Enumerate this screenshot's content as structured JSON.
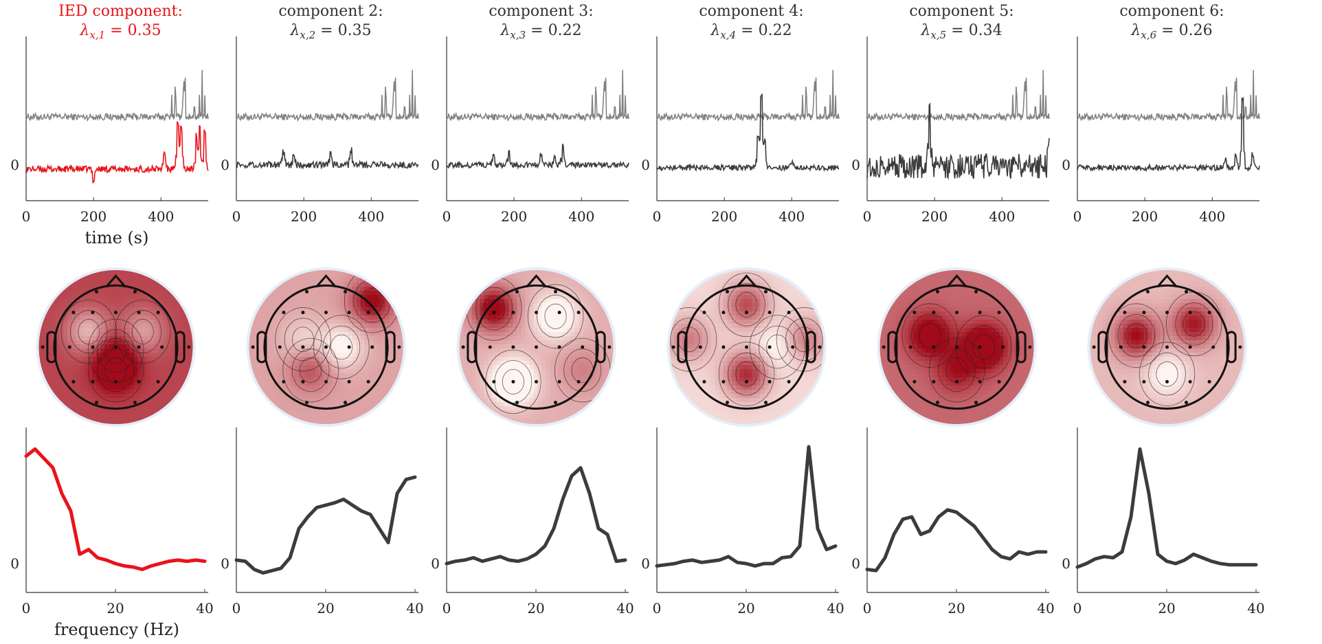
{
  "figure": {
    "time_xlabel": "time (s)",
    "freq_xlabel": "frequency (Hz)",
    "zero_label": "0",
    "time_ticks": [
      0,
      200,
      400
    ],
    "time_xlim": [
      0,
      540
    ],
    "freq_ticks": [
      0,
      20,
      40
    ],
    "freq_xlim": [
      0,
      40
    ]
  },
  "colors": {
    "ied": "#e8141b",
    "other": "#3c3c3c",
    "gray": "#808080",
    "head": "#111111"
  },
  "chart_data": [
    {
      "type": "line",
      "highlight": true,
      "title_line1": "IED component:",
      "title_line2": "λx,1 = 0.35",
      "lambda_sub": "x,1",
      "lambda_value": "0.35",
      "time_spikes": [
        [
          450,
          1.7
        ],
        [
          460,
          1.5
        ],
        [
          505,
          1.3
        ],
        [
          515,
          1.6
        ],
        [
          530,
          1.4
        ],
        [
          410,
          0.6
        ],
        [
          200,
          -0.4
        ]
      ],
      "time_noise": 0.12,
      "time_baseline": -0.15,
      "spectrum": {
        "freq": [
          0,
          2,
          4,
          6,
          8,
          10,
          12,
          14,
          16,
          18,
          20,
          22,
          24,
          26,
          28,
          30,
          32,
          34,
          36,
          38,
          40
        ],
        "power": [
          0.92,
          0.98,
          0.9,
          0.82,
          0.6,
          0.45,
          0.08,
          0.12,
          0.05,
          0.03,
          0.0,
          -0.02,
          -0.03,
          -0.05,
          -0.02,
          0.0,
          0.02,
          0.03,
          0.02,
          0.03,
          0.02
        ]
      },
      "topo": {
        "blobs": [
          [
            0.0,
            0.3,
            0.5
          ],
          [
            -0.35,
            -0.2,
            -0.5
          ],
          [
            0.35,
            -0.2,
            -0.4
          ],
          [
            0.0,
            0.05,
            0.3
          ]
        ],
        "base": 0.75
      }
    },
    {
      "type": "line",
      "title_line1": "component 2:",
      "title_line2": "λx,2 = 0.35",
      "lambda_sub": "x,2",
      "lambda_value": "0.35",
      "time_spikes": [
        [
          140,
          0.45
        ],
        [
          280,
          0.4
        ],
        [
          340,
          0.55
        ],
        [
          170,
          0.3
        ]
      ],
      "time_noise": 0.12,
      "time_baseline": 0.0,
      "spectrum": {
        "freq": [
          0,
          2,
          4,
          6,
          8,
          10,
          12,
          14,
          16,
          18,
          20,
          22,
          24,
          26,
          28,
          30,
          32,
          34,
          36,
          38,
          40
        ],
        "power": [
          0.03,
          0.02,
          -0.05,
          -0.08,
          -0.06,
          -0.04,
          0.05,
          0.3,
          0.4,
          0.48,
          0.5,
          0.52,
          0.55,
          0.5,
          0.45,
          0.42,
          0.3,
          0.18,
          0.6,
          0.72,
          0.74
        ]
      },
      "topo": {
        "blobs": [
          [
            0.6,
            -0.6,
            0.7
          ],
          [
            -0.2,
            0.3,
            0.35
          ],
          [
            0.2,
            0.0,
            -0.4
          ],
          [
            -0.3,
            -0.1,
            -0.2
          ]
        ],
        "base": 0.35
      }
    },
    {
      "type": "line",
      "title_line1": "component 3:",
      "title_line2": "λx,3 = 0.22",
      "lambda_sub": "x,3",
      "lambda_value": "0.22",
      "time_spikes": [
        [
          140,
          0.35
        ],
        [
          185,
          0.45
        ],
        [
          280,
          0.35
        ],
        [
          320,
          0.3
        ],
        [
          345,
          0.8
        ]
      ],
      "time_noise": 0.1,
      "time_baseline": 0.0,
      "spectrum": {
        "freq": [
          0,
          2,
          4,
          6,
          8,
          10,
          12,
          14,
          16,
          18,
          20,
          22,
          24,
          26,
          28,
          30,
          32,
          34,
          36,
          38,
          40
        ],
        "power": [
          0.0,
          0.02,
          0.03,
          0.05,
          0.02,
          0.04,
          0.06,
          0.03,
          0.02,
          0.04,
          0.08,
          0.15,
          0.3,
          0.55,
          0.75,
          0.82,
          0.6,
          0.3,
          0.25,
          0.02,
          0.03
        ]
      },
      "topo": {
        "blobs": [
          [
            -0.55,
            -0.5,
            0.8
          ],
          [
            0.25,
            -0.4,
            -0.5
          ],
          [
            -0.3,
            0.45,
            -0.7
          ],
          [
            0.6,
            0.3,
            0.2
          ]
        ],
        "base": 0.3
      }
    },
    {
      "type": "line",
      "title_line1": "component 4:",
      "title_line2": "λx,4 = 0.22",
      "lambda_sub": "x,4",
      "lambda_value": "0.22",
      "time_spikes": [
        [
          310,
          2.6
        ],
        [
          300,
          1.2
        ],
        [
          320,
          1.0
        ],
        [
          400,
          0.2
        ]
      ],
      "time_noise": 0.1,
      "time_baseline": -0.1,
      "spectrum": {
        "freq": [
          0,
          2,
          4,
          6,
          8,
          10,
          12,
          14,
          16,
          18,
          20,
          22,
          24,
          26,
          28,
          30,
          32,
          34,
          36,
          38,
          40
        ],
        "power": [
          -0.02,
          -0.01,
          0.0,
          0.02,
          0.03,
          0.01,
          0.02,
          0.03,
          0.06,
          0.01,
          0.0,
          -0.02,
          0.0,
          0.0,
          0.05,
          0.06,
          0.15,
          1.0,
          0.3,
          0.12,
          0.15
        ]
      },
      "topo": {
        "blobs": [
          [
            0.0,
            -0.55,
            0.6
          ],
          [
            0.0,
            0.35,
            0.75
          ],
          [
            -0.75,
            -0.1,
            0.4
          ],
          [
            0.75,
            -0.1,
            0.4
          ],
          [
            0.4,
            0.0,
            -0.2
          ]
        ],
        "base": 0.12
      }
    },
    {
      "type": "line",
      "title_line1": "component 5:",
      "title_line2": "λx,5 = 0.34",
      "lambda_sub": "x,5",
      "lambda_value": "0.34",
      "time_spikes": [
        [
          185,
          1.9
        ],
        [
          540,
          1.0
        ]
      ],
      "time_noise": 0.45,
      "time_baseline": -0.05,
      "spectrum": {
        "freq": [
          0,
          2,
          4,
          6,
          8,
          10,
          12,
          14,
          16,
          18,
          20,
          22,
          24,
          26,
          28,
          30,
          32,
          34,
          36,
          38,
          40
        ],
        "power": [
          -0.05,
          -0.06,
          0.05,
          0.25,
          0.38,
          0.4,
          0.25,
          0.28,
          0.4,
          0.46,
          0.44,
          0.38,
          0.32,
          0.22,
          0.12,
          0.06,
          0.04,
          0.1,
          0.08,
          0.1,
          0.1
        ]
      },
      "topo": {
        "blobs": [
          [
            0.35,
            0.0,
            0.75
          ],
          [
            -0.35,
            -0.15,
            0.6
          ],
          [
            0.0,
            0.3,
            0.35
          ]
        ],
        "base": 0.6
      }
    },
    {
      "type": "line",
      "title_line1": "component 6:",
      "title_line2": "λx,6 = 0.26",
      "lambda_sub": "x,6",
      "lambda_value": "0.26",
      "time_spikes": [
        [
          490,
          2.5
        ],
        [
          470,
          0.4
        ],
        [
          520,
          0.5
        ],
        [
          440,
          0.3
        ]
      ],
      "time_noise": 0.1,
      "time_baseline": -0.1,
      "spectrum": {
        "freq": [
          0,
          2,
          4,
          6,
          8,
          10,
          12,
          14,
          16,
          18,
          20,
          22,
          24,
          26,
          28,
          30,
          32,
          34,
          36,
          38,
          40
        ],
        "power": [
          -0.03,
          0.0,
          0.04,
          0.06,
          0.05,
          0.1,
          0.4,
          0.98,
          0.6,
          0.08,
          0.02,
          0.0,
          0.03,
          0.08,
          0.05,
          0.02,
          0.0,
          -0.01,
          -0.01,
          -0.01,
          -0.01
        ]
      },
      "topo": {
        "blobs": [
          [
            -0.4,
            -0.15,
            0.75
          ],
          [
            0.35,
            -0.3,
            0.7
          ],
          [
            0.0,
            0.35,
            -0.3
          ]
        ],
        "base": 0.25
      }
    }
  ]
}
